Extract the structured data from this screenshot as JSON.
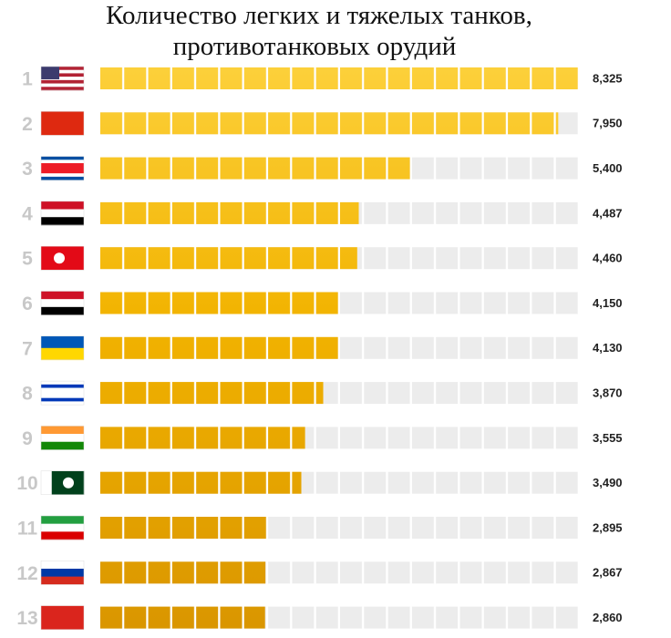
{
  "chart_data": {
    "type": "bar",
    "orientation": "horizontal",
    "title": [
      "Количество легких и тяжелых танков,",
      "противотанковых орудий"
    ],
    "categories": [
      "1",
      "2",
      "3",
      "4",
      "5",
      "6",
      "7",
      "8",
      "9",
      "10",
      "11",
      "12",
      "13"
    ],
    "values": [
      8325,
      7950,
      5400,
      4487,
      4460,
      4150,
      4130,
      3870,
      3555,
      3490,
      2895,
      2867,
      2860
    ],
    "value_labels": [
      "8,325",
      "7,950",
      "5,400",
      "4,487",
      "4,460",
      "4,150",
      "4,130",
      "3,870",
      "3,555",
      "3,490",
      "2,895",
      "2,867",
      "2,860"
    ],
    "xlim": [
      0,
      8325
    ],
    "color": "#f0b000"
  }
}
